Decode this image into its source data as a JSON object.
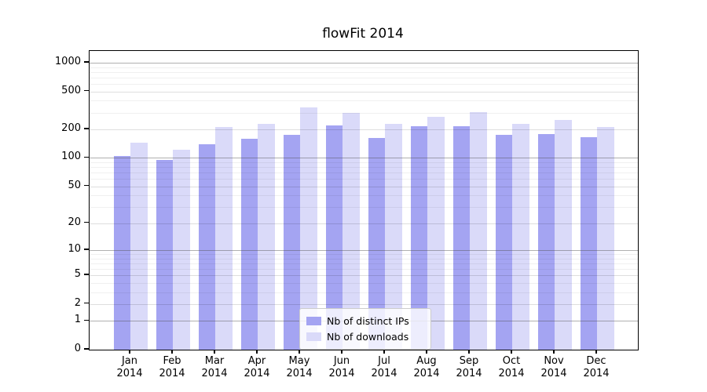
{
  "title": "flowFit 2014",
  "chart_data": {
    "type": "bar",
    "title": "flowFit 2014",
    "categories": [
      "Jan",
      "Feb",
      "Mar",
      "Apr",
      "May",
      "Jun",
      "Jul",
      "Aug",
      "Sep",
      "Oct",
      "Nov",
      "Dec"
    ],
    "category_year": "2014",
    "series": [
      {
        "name": "Nb of distinct IPs",
        "color": "#a4a4f2",
        "values": [
          104,
          95,
          140,
          159,
          176,
          220,
          163,
          216,
          216,
          176,
          179,
          166
        ]
      },
      {
        "name": "Nb of downloads",
        "color": "#dadaf9",
        "values": [
          146,
          122,
          212,
          228,
          340,
          299,
          228,
          271,
          304,
          228,
          251,
          212
        ]
      }
    ],
    "xlabel": "",
    "ylabel": "",
    "y_axis": {
      "scale": "log1p",
      "tick_labels": [
        "0",
        "1",
        "2",
        "5",
        "10",
        "20",
        "50",
        "100",
        "200",
        "500",
        "1000"
      ],
      "tick_values": [
        0,
        1,
        2,
        5,
        10,
        20,
        50,
        100,
        200,
        500,
        1000
      ],
      "range": [
        0,
        1330
      ]
    },
    "grid": true,
    "legend_position": "lower-center-inside"
  }
}
